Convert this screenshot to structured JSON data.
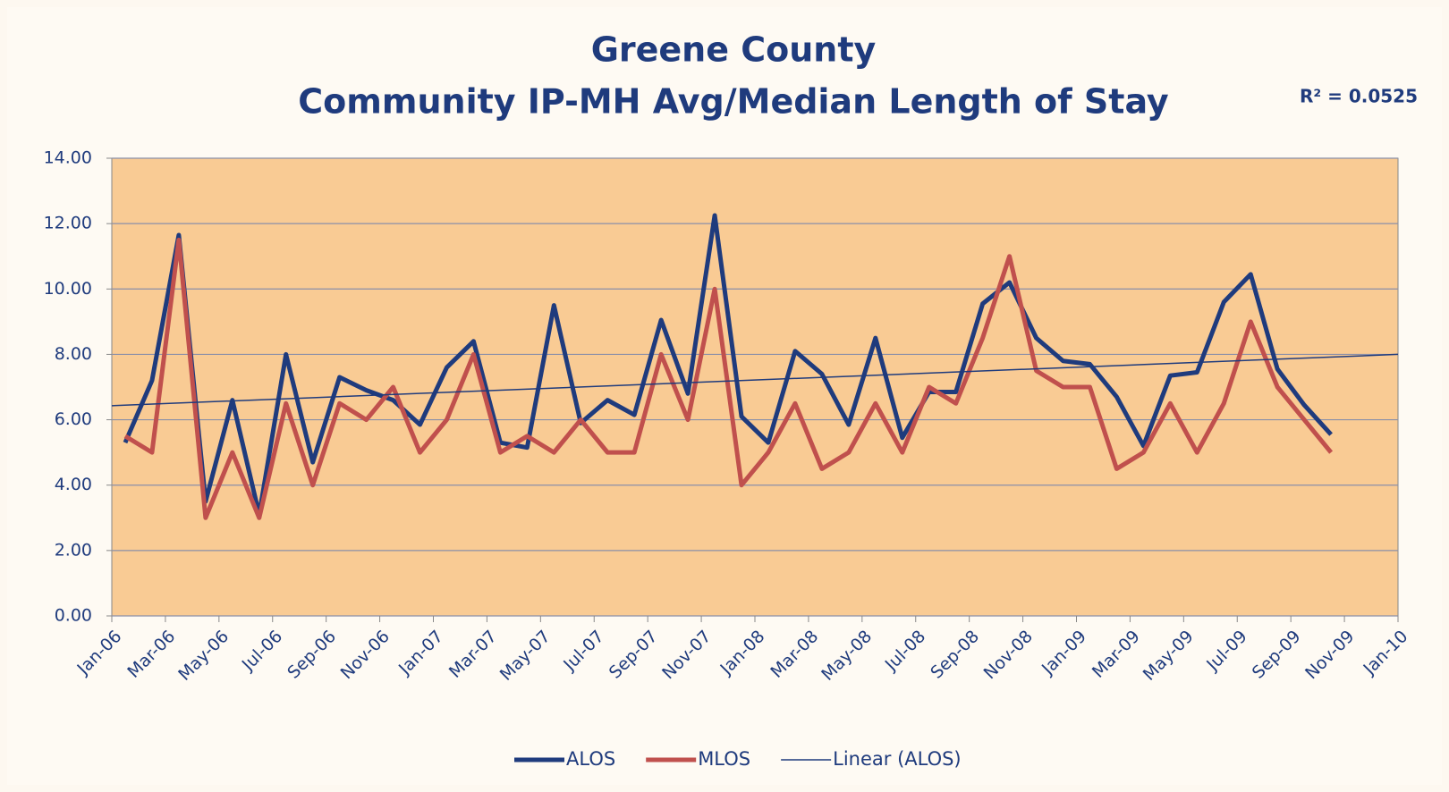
{
  "chart_data": {
    "type": "line",
    "title": [
      "Greene County",
      "Community IP-MH Avg/Median Length of Stay"
    ],
    "annotation": "R² = 0.0525",
    "x": [
      "2006-01",
      "2006-02",
      "2006-03",
      "2006-04",
      "2006-05",
      "2006-06",
      "2006-07",
      "2006-08",
      "2006-09",
      "2006-10",
      "2006-11",
      "2006-12",
      "2007-01",
      "2007-02",
      "2007-03",
      "2007-04",
      "2007-05",
      "2007-06",
      "2007-07",
      "2007-08",
      "2007-09",
      "2007-10",
      "2007-11",
      "2007-12",
      "2008-01",
      "2008-02",
      "2008-03",
      "2008-04",
      "2008-05",
      "2008-06",
      "2008-07",
      "2008-08",
      "2008-09",
      "2008-10",
      "2008-11",
      "2008-12",
      "2009-01",
      "2009-02",
      "2009-03",
      "2009-04",
      "2009-05",
      "2009-06",
      "2009-07",
      "2009-08",
      "2009-09",
      "2009-10"
    ],
    "series": [
      {
        "name": "ALOS",
        "color": "#1f3b7d",
        "width": 5,
        "values": [
          5.3,
          7.2,
          11.65,
          3.5,
          6.6,
          3.1,
          8.0,
          4.7,
          7.3,
          6.9,
          6.6,
          5.85,
          7.6,
          8.4,
          5.3,
          5.15,
          9.5,
          5.9,
          6.6,
          6.15,
          9.05,
          6.8,
          12.25,
          6.1,
          5.3,
          8.1,
          7.4,
          5.85,
          8.5,
          5.45,
          6.85,
          6.85,
          9.55,
          10.2,
          8.5,
          7.8,
          7.7,
          6.7,
          5.2,
          7.35,
          7.45,
          9.6,
          10.45,
          7.55,
          6.45,
          5.55
        ]
      },
      {
        "name": "MLOS",
        "color": "#c0504d",
        "width": 5,
        "values": [
          5.5,
          5.0,
          11.5,
          3.0,
          5.0,
          3.0,
          6.5,
          4.0,
          6.5,
          6.0,
          7.0,
          5.0,
          6.0,
          8.0,
          5.0,
          5.5,
          5.0,
          6.0,
          5.0,
          5.0,
          8.0,
          6.0,
          10.0,
          4.0,
          5.0,
          6.5,
          4.5,
          5.0,
          6.5,
          5.0,
          7.0,
          6.5,
          8.5,
          11.0,
          7.5,
          7.0,
          7.0,
          4.5,
          5.0,
          6.5,
          5.0,
          6.5,
          9.0,
          7.0,
          6.0,
          5.0
        ]
      }
    ],
    "trendline": {
      "name": "Linear (ALOS)",
      "color": "#1f3b7d",
      "width": 1.5,
      "x": [
        "2006-01",
        "2010-01"
      ],
      "values": [
        6.43,
        8.0
      ]
    },
    "xlim": [
      "2006-01",
      "2010-01"
    ],
    "xticks": [
      {
        "value": "2006-01",
        "label": "Jan-06"
      },
      {
        "value": "2006-03",
        "label": "Mar-06"
      },
      {
        "value": "2006-05",
        "label": "May-06"
      },
      {
        "value": "2006-07",
        "label": "Jul-06"
      },
      {
        "value": "2006-09",
        "label": "Sep-06"
      },
      {
        "value": "2006-11",
        "label": "Nov-06"
      },
      {
        "value": "2007-01",
        "label": "Jan-07"
      },
      {
        "value": "2007-03",
        "label": "Mar-07"
      },
      {
        "value": "2007-05",
        "label": "May-07"
      },
      {
        "value": "2007-07",
        "label": "Jul-07"
      },
      {
        "value": "2007-09",
        "label": "Sep-07"
      },
      {
        "value": "2007-11",
        "label": "Nov-07"
      },
      {
        "value": "2008-01",
        "label": "Jan-08"
      },
      {
        "value": "2008-03",
        "label": "Mar-08"
      },
      {
        "value": "2008-05",
        "label": "May-08"
      },
      {
        "value": "2008-07",
        "label": "Jul-08"
      },
      {
        "value": "2008-09",
        "label": "Sep-08"
      },
      {
        "value": "2008-11",
        "label": "Nov-08"
      },
      {
        "value": "2009-01",
        "label": "Jan-09"
      },
      {
        "value": "2009-03",
        "label": "Mar-09"
      },
      {
        "value": "2009-05",
        "label": "May-09"
      },
      {
        "value": "2009-07",
        "label": "Jul-09"
      },
      {
        "value": "2009-09",
        "label": "Sep-09"
      },
      {
        "value": "2009-11",
        "label": "Nov-09"
      },
      {
        "value": "2010-01",
        "label": "Jan-10"
      }
    ],
    "ylim": [
      0,
      14
    ],
    "yticks": [
      {
        "value": 0,
        "label": "0.00"
      },
      {
        "value": 2,
        "label": "2.00"
      },
      {
        "value": 4,
        "label": "4.00"
      },
      {
        "value": 6,
        "label": "6.00"
      },
      {
        "value": 8,
        "label": "8.00"
      },
      {
        "value": 10,
        "label": "10.00"
      },
      {
        "value": 12,
        "label": "12.00"
      },
      {
        "value": 14,
        "label": "14.00"
      }
    ],
    "grid": true,
    "legend": "bottom"
  }
}
